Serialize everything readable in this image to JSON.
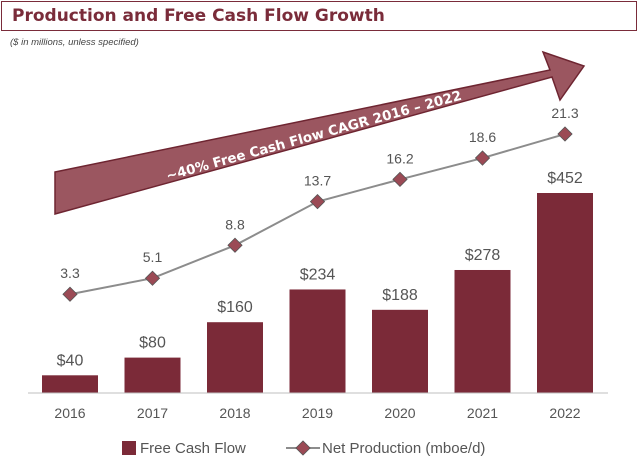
{
  "header": {
    "title": "Production and Free Cash Flow Growth",
    "subtitle": "($ in millions, unless specified)"
  },
  "annotation": {
    "text": "~40% Free Cash Flow CAGR 2016 – 2022"
  },
  "colors": {
    "bar": "#7b2a38",
    "line": "#8c8c8c",
    "marker": "#9b4a55",
    "title": "#7a2c3a"
  },
  "chart_data": {
    "type": "bar",
    "categories": [
      "2016",
      "2017",
      "2018",
      "2019",
      "2020",
      "2021",
      "2022"
    ],
    "series": [
      {
        "name": "Free Cash Flow",
        "type": "bar",
        "values": [
          40,
          80,
          160,
          234,
          188,
          278,
          452
        ],
        "labels": [
          "$40",
          "$80",
          "$160",
          "$234",
          "$188",
          "$278",
          "$452"
        ]
      },
      {
        "name": "Net Production (mboe/d)",
        "type": "line",
        "values": [
          3.3,
          5.1,
          8.8,
          13.7,
          16.2,
          18.6,
          21.3
        ],
        "labels": [
          "3.3",
          "5.1",
          "8.8",
          "13.7",
          "16.2",
          "18.6",
          "21.3"
        ]
      }
    ],
    "legend": "bottom",
    "grid": false
  }
}
